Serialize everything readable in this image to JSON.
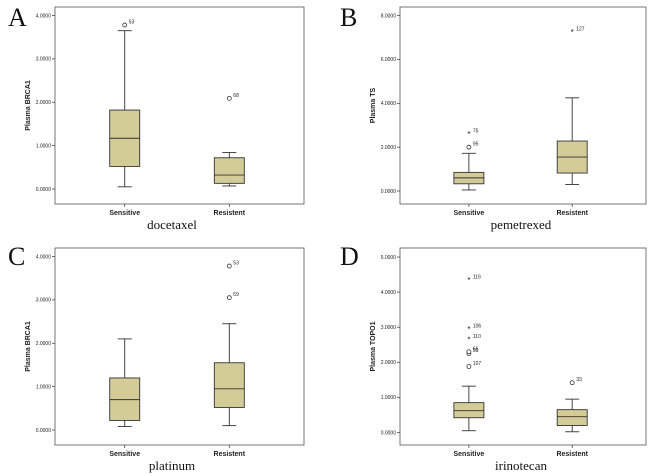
{
  "chart_data": [
    {
      "type": "boxplot",
      "panel_label": "A",
      "drug": "docetaxel",
      "ylabel": "Plasma BRCA1",
      "ylim": [
        -0.3,
        4.15
      ],
      "yticks": [
        0,
        1,
        2,
        3,
        4
      ],
      "ytick_labels": [
        "0.0000",
        "1.0000",
        "2.0000",
        "3.0000",
        "4.0000"
      ],
      "categories": [
        "Sensitive",
        "Resistent"
      ],
      "boxes": [
        {
          "min": 0.05,
          "q1": 0.52,
          "median": 1.17,
          "q3": 1.82,
          "max": 3.65,
          "outliers": [
            {
              "value": 3.78,
              "label": "53",
              "marker": "circle"
            }
          ]
        },
        {
          "min": 0.07,
          "q1": 0.13,
          "median": 0.32,
          "q3": 0.72,
          "max": 0.84,
          "outliers": [
            {
              "value": 2.09,
              "label": "68",
              "marker": "circle"
            }
          ]
        }
      ]
    },
    {
      "type": "boxplot",
      "panel_label": "B",
      "drug": "pemetrexed",
      "ylabel": "Plasma TS",
      "ylim": [
        -0.5,
        8.3
      ],
      "yticks": [
        0,
        2,
        4,
        6,
        8
      ],
      "ytick_labels": [
        "0.0000",
        "2.0000",
        "4.0000",
        "6.0000",
        "8.0000"
      ],
      "categories": [
        "Sensitive",
        "Resistent"
      ],
      "boxes": [
        {
          "min": 0.05,
          "q1": 0.33,
          "median": 0.6,
          "q3": 0.85,
          "max": 1.72,
          "outliers": [
            {
              "value": 2.0,
              "label": "95",
              "marker": "circle"
            },
            {
              "value": 2.6,
              "label": "75",
              "marker": "star"
            }
          ]
        },
        {
          "min": 0.3,
          "q1": 0.82,
          "median": 1.55,
          "q3": 2.28,
          "max": 4.25,
          "outliers": [
            {
              "value": 7.25,
              "label": "127",
              "marker": "star"
            }
          ]
        }
      ]
    },
    {
      "type": "boxplot",
      "panel_label": "C",
      "drug": "platinum",
      "ylabel": "Plasma BRCA1",
      "ylim": [
        -0.3,
        4.15
      ],
      "yticks": [
        0,
        1,
        2,
        3,
        4
      ],
      "ytick_labels": [
        "0.0000",
        "1.0000",
        "2.0000",
        "3.0000",
        "4.0000"
      ],
      "categories": [
        "Sensitive",
        "Resistent"
      ],
      "boxes": [
        {
          "min": 0.08,
          "q1": 0.22,
          "median": 0.7,
          "q3": 1.2,
          "max": 2.1,
          "outliers": []
        },
        {
          "min": 0.1,
          "q1": 0.52,
          "median": 0.95,
          "q3": 1.55,
          "max": 2.45,
          "outliers": [
            {
              "value": 3.05,
              "label": "59",
              "marker": "circle"
            },
            {
              "value": 3.78,
              "label": "53",
              "marker": "circle"
            }
          ]
        }
      ]
    },
    {
      "type": "boxplot",
      "panel_label": "D",
      "drug": "irinotecan",
      "ylabel": "Plasma TOPO1",
      "ylim": [
        -0.3,
        5.2
      ],
      "yticks": [
        0,
        1,
        2,
        3,
        4,
        5
      ],
      "ytick_labels": [
        "0.0000",
        "1.0000",
        "2.0000",
        "3.0000",
        "4.0000",
        "5.0000"
      ],
      "categories": [
        "Sensitive",
        "Resistent"
      ],
      "boxes": [
        {
          "min": 0.05,
          "q1": 0.42,
          "median": 0.62,
          "q3": 0.85,
          "max": 1.32,
          "outliers": [
            {
              "value": 1.88,
              "label": "107",
              "marker": "circle"
            },
            {
              "value": 2.25,
              "label": "59",
              "marker": "circle"
            },
            {
              "value": 2.3,
              "label": "66",
              "marker": "circle"
            },
            {
              "value": 2.65,
              "label": "110",
              "marker": "star"
            },
            {
              "value": 2.95,
              "label": "106",
              "marker": "star"
            },
            {
              "value": 4.35,
              "label": "116",
              "marker": "star"
            }
          ]
        },
        {
          "min": 0.02,
          "q1": 0.2,
          "median": 0.45,
          "q3": 0.65,
          "max": 0.95,
          "outliers": [
            {
              "value": 1.42,
              "label": "33",
              "marker": "circle"
            }
          ]
        }
      ]
    }
  ]
}
